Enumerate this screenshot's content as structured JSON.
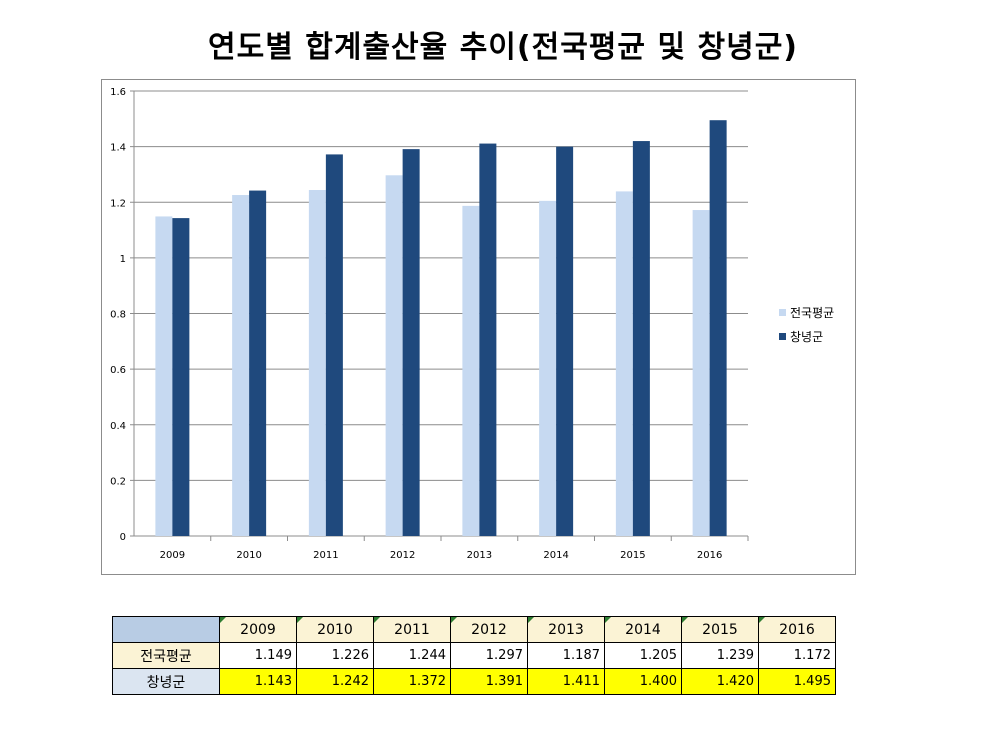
{
  "title": "연도별 합계출산율 추이(전국평균 및 창녕군)",
  "chart_data": {
    "type": "bar",
    "categories": [
      "2009",
      "2010",
      "2011",
      "2012",
      "2013",
      "2014",
      "2015",
      "2016"
    ],
    "series": [
      {
        "name": "전국평균",
        "values": [
          1.149,
          1.226,
          1.244,
          1.297,
          1.187,
          1.205,
          1.239,
          1.172
        ],
        "color": "#c6d9f1"
      },
      {
        "name": "창녕군",
        "values": [
          1.143,
          1.242,
          1.372,
          1.391,
          1.411,
          1.4,
          1.42,
          1.495
        ],
        "color": "#1f497d"
      }
    ],
    "ylim": [
      0,
      1.6
    ],
    "yticks": [
      "0",
      "0.2",
      "0.4",
      "0.6",
      "0.8",
      "1",
      "1.2",
      "1.4",
      "1.6"
    ],
    "grid": true,
    "legend": "right"
  },
  "table": {
    "years": [
      "2009",
      "2010",
      "2011",
      "2012",
      "2013",
      "2014",
      "2015",
      "2016"
    ],
    "rows": [
      {
        "label": "전국평균",
        "values": [
          "1.149",
          "1.226",
          "1.244",
          "1.297",
          "1.187",
          "1.205",
          "1.239",
          "1.172"
        ]
      },
      {
        "label": "창녕군",
        "values": [
          "1.143",
          "1.242",
          "1.372",
          "1.391",
          "1.411",
          "1.400",
          "1.420",
          "1.495"
        ]
      }
    ]
  }
}
